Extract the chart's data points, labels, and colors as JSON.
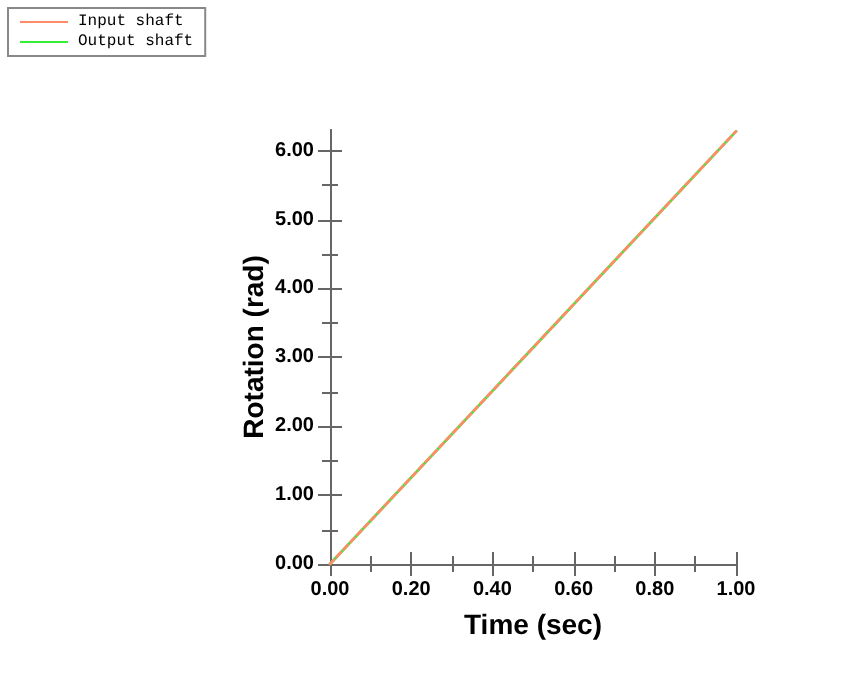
{
  "chart_data": {
    "type": "line",
    "xlabel": "Time (sec)",
    "ylabel": "Rotation (rad)",
    "x": [
      0,
      0.5,
      1
    ],
    "series": [
      {
        "name": "Input shaft",
        "color": "#ff8c69",
        "values": [
          0,
          3.14,
          6.28
        ],
        "line_style": "dashed"
      },
      {
        "name": "Output shaft",
        "color": "#33ee33",
        "values": [
          0,
          3.14,
          6.28
        ],
        "line_style": "solid"
      }
    ],
    "xlim": [
      0,
      1
    ],
    "xticks": [
      {
        "value": 0,
        "label": "0.00"
      },
      {
        "value": 0.2,
        "label": "0.20"
      },
      {
        "value": 0.4,
        "label": "0.40"
      },
      {
        "value": 0.6,
        "label": "0.60"
      },
      {
        "value": 0.8,
        "label": "0.80"
      },
      {
        "value": 1,
        "label": "1.00"
      }
    ],
    "ylim": [
      0,
      6.3
    ],
    "yticks": [
      {
        "value": 0,
        "label": "0.00"
      },
      {
        "value": 1,
        "label": "1.00"
      },
      {
        "value": 2,
        "label": "2.00"
      },
      {
        "value": 3,
        "label": "3.00"
      },
      {
        "value": 4,
        "label": "4.00"
      },
      {
        "value": 5,
        "label": "5.00"
      },
      {
        "value": 6,
        "label": "6.00"
      }
    ],
    "grid": false,
    "legend": "top left",
    "marker": "none"
  }
}
